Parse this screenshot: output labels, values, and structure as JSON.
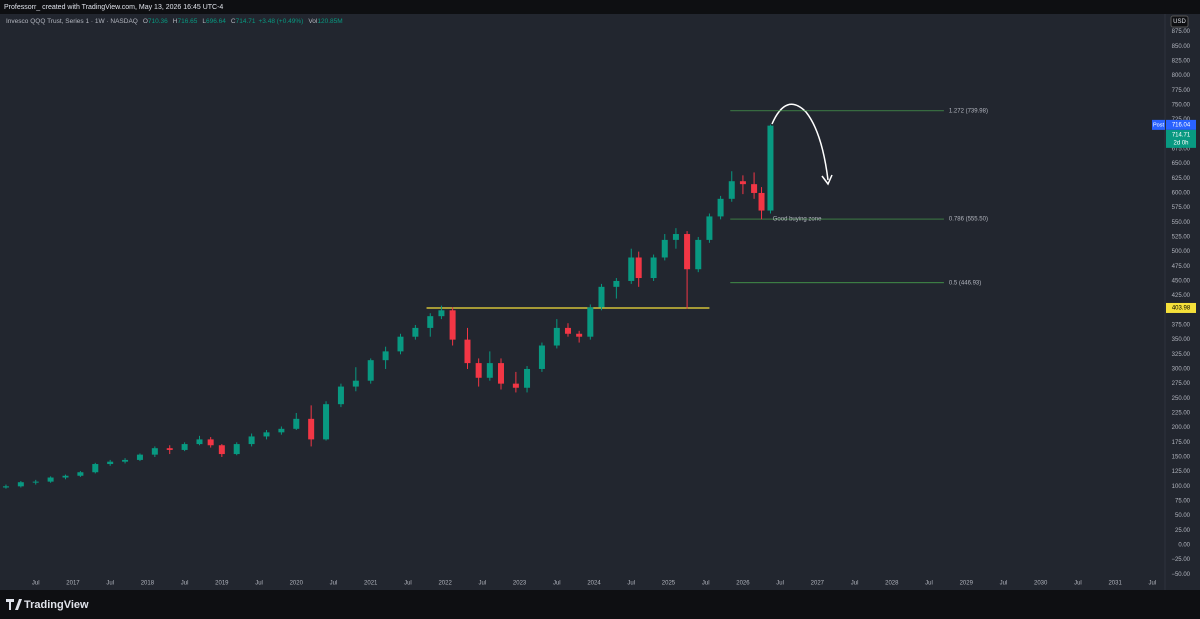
{
  "page": {
    "header": "Professorr_ created with TradingView.com, May 13, 2026 16:45 UTC-4",
    "brand": "TradingView"
  },
  "chart_data": {
    "type": "candlestick",
    "legend_title": "Invesco QQQ Trust, Series 1 · 1W · NASDAQ",
    "legend_values": [
      {
        "label": "O",
        "value": 710.36
      },
      {
        "label": "H",
        "value": 716.65
      },
      {
        "label": "L",
        "value": 696.64
      },
      {
        "label": "C",
        "value": 714.71
      }
    ],
    "change": "+3.48 (+0.49%)",
    "volume": {
      "label": "Vol",
      "value": "120.85M"
    },
    "currency": "USD",
    "up_color": "#089981",
    "down_color": "#f23645",
    "x": [
      2016.1,
      2016.3,
      2016.5,
      2016.7,
      2016.9,
      2017.1,
      2017.3,
      2017.5,
      2017.7,
      2017.9,
      2018.1,
      2018.3,
      2018.5,
      2018.7,
      2018.85,
      2019.0,
      2019.2,
      2019.4,
      2019.6,
      2019.8,
      2020.0,
      2020.2,
      2020.4,
      2020.6,
      2020.8,
      2021.0,
      2021.2,
      2021.4,
      2021.6,
      2021.8,
      2021.95,
      2022.1,
      2022.3,
      2022.45,
      2022.6,
      2022.75,
      2022.95,
      2023.1,
      2023.3,
      2023.5,
      2023.65,
      2023.8,
      2023.95,
      2024.1,
      2024.3,
      2024.5,
      2024.6,
      2024.8,
      2024.95,
      2025.1,
      2025.25,
      2025.4,
      2025.55,
      2025.7,
      2025.85,
      2026.0,
      2026.15,
      2026.25,
      2026.37
    ],
    "open": [
      98,
      100,
      107,
      108,
      115,
      118,
      124,
      138,
      142,
      145,
      154,
      165,
      162,
      172,
      180,
      170,
      155,
      172,
      185,
      192,
      198,
      215,
      180,
      240,
      270,
      280,
      315,
      330,
      355,
      370,
      390,
      400,
      350,
      310,
      285,
      310,
      275,
      268,
      300,
      340,
      370,
      360,
      355,
      405,
      440,
      450,
      490,
      455,
      490,
      520,
      530,
      470,
      520,
      560,
      590,
      620,
      615,
      600,
      570
    ],
    "high": [
      103,
      109,
      111,
      117,
      120,
      126,
      140,
      145,
      148,
      156,
      168,
      170,
      175,
      186,
      184,
      172,
      175,
      190,
      196,
      202,
      225,
      238,
      245,
      275,
      303,
      318,
      338,
      360,
      375,
      395,
      408,
      405,
      370,
      318,
      330,
      318,
      295,
      305,
      345,
      385,
      378,
      365,
      410,
      445,
      455,
      505,
      500,
      495,
      530,
      540,
      535,
      525,
      565,
      595,
      637,
      630,
      635,
      610,
      716.65
    ],
    "low": [
      96,
      98,
      103,
      106,
      112,
      116,
      122,
      135,
      139,
      143,
      150,
      155,
      160,
      170,
      166,
      150,
      153,
      168,
      180,
      188,
      196,
      168,
      178,
      235,
      262,
      275,
      300,
      325,
      350,
      355,
      385,
      340,
      300,
      270,
      280,
      265,
      260,
      260,
      295,
      335,
      355,
      345,
      350,
      400,
      420,
      445,
      440,
      450,
      485,
      505,
      403,
      465,
      515,
      555,
      585,
      598,
      590,
      555,
      565
    ],
    "close": [
      100,
      107,
      108,
      115,
      118,
      124,
      138,
      142,
      145,
      154,
      165,
      162,
      172,
      180,
      170,
      155,
      172,
      185,
      192,
      198,
      215,
      180,
      240,
      270,
      280,
      315,
      330,
      355,
      370,
      390,
      400,
      350,
      310,
      285,
      310,
      275,
      268,
      300,
      340,
      370,
      360,
      355,
      405,
      440,
      450,
      490,
      455,
      490,
      520,
      530,
      470,
      520,
      560,
      590,
      620,
      615,
      600,
      570,
      714.71
    ],
    "xlim": [
      2016.02,
      2031.67
    ],
    "xticks": [
      {
        "value": 2016.5,
        "label": "Jul"
      },
      2017,
      {
        "value": 2017.5,
        "label": "Jul"
      },
      2018,
      {
        "value": 2018.5,
        "label": "Jul"
      },
      2019,
      {
        "value": 2019.5,
        "label": "Jul"
      },
      2020,
      {
        "value": 2020.5,
        "label": "Jul"
      },
      2021,
      {
        "value": 2021.5,
        "label": "Jul"
      },
      2022,
      {
        "value": 2022.5,
        "label": "Jul"
      },
      2023,
      {
        "value": 2023.5,
        "label": "Jul"
      },
      2024,
      {
        "value": 2024.5,
        "label": "Jul"
      },
      2025,
      {
        "value": 2025.5,
        "label": "Jul"
      },
      2026,
      {
        "value": 2026.5,
        "label": "Jul"
      },
      2027,
      {
        "value": 2027.5,
        "label": "Jul"
      },
      2028,
      {
        "value": 2028.5,
        "label": "Jul"
      },
      2029,
      {
        "value": 2029.5,
        "label": "Jul"
      },
      2030,
      {
        "value": 2030.5,
        "label": "Jul"
      },
      2031,
      {
        "value": 2031.5,
        "label": "Jul"
      }
    ],
    "ylim": [
      -75,
      905
    ],
    "yticks": [
      {
        "value": 875,
        "label": "875.00"
      },
      {
        "value": 850,
        "label": "850.00"
      },
      {
        "value": 825,
        "label": "825.00"
      },
      {
        "value": 800,
        "label": "800.00"
      },
      {
        "value": 775,
        "label": "775.00"
      },
      {
        "value": 750,
        "label": "750.00"
      },
      {
        "value": 725,
        "label": "725.00"
      },
      {
        "value": 700,
        "label": "700.00"
      },
      {
        "value": 675,
        "label": "675.00"
      },
      {
        "value": 650,
        "label": "650.00"
      },
      {
        "value": 625,
        "label": "625.00"
      },
      {
        "value": 600,
        "label": "600.00"
      },
      {
        "value": 575,
        "label": "575.00"
      },
      {
        "value": 550,
        "label": "550.00"
      },
      {
        "value": 525,
        "label": "525.00"
      },
      {
        "value": 500,
        "label": "500.00"
      },
      {
        "value": 475,
        "label": "475.00"
      },
      {
        "value": 450,
        "label": "450.00"
      },
      {
        "value": 425,
        "label": "425.00"
      },
      {
        "value": 400,
        "label": "400.00"
      },
      {
        "value": 375,
        "label": "375.00"
      },
      {
        "value": 350,
        "label": "350.00"
      },
      {
        "value": 325,
        "label": "325.00"
      },
      {
        "value": 300,
        "label": "300.00"
      },
      {
        "value": 275,
        "label": "275.00"
      },
      {
        "value": 250,
        "label": "250.00"
      },
      {
        "value": 225,
        "label": "225.00"
      },
      {
        "value": 200,
        "label": "200.00"
      },
      {
        "value": 175,
        "label": "175.00"
      },
      {
        "value": 150,
        "label": "150.00"
      },
      {
        "value": 125,
        "label": "125.00"
      },
      {
        "value": 100,
        "label": "100.00"
      },
      {
        "value": 75,
        "label": "75.00"
      },
      {
        "value": 50,
        "label": "50.00"
      },
      {
        "value": 25,
        "label": "25.00"
      },
      {
        "value": 0,
        "label": "0.00"
      },
      {
        "value": -25,
        "label": "−25.00"
      },
      {
        "value": -50,
        "label": "−50.00"
      }
    ],
    "grid": false,
    "breakout": {
      "price": 403.98,
      "x": [
        2021.75,
        2025.55
      ],
      "color": "#f5e03a"
    },
    "fib_x": [
      2025.83,
      2028.7
    ],
    "fib_color": "#4caf50",
    "fib": [
      {
        "price": 739.98,
        "label": "1.272 (739.98)"
      },
      {
        "price": 555.5,
        "label": "0.786 (555.50)",
        "note": "Good buying zone"
      },
      {
        "price": 446.93,
        "label": "0.5 (446.93)"
      }
    ],
    "last": {
      "post_label": "Post",
      "post_price": 716.04,
      "price": 714.71,
      "countdown": "2d 0h"
    }
  }
}
